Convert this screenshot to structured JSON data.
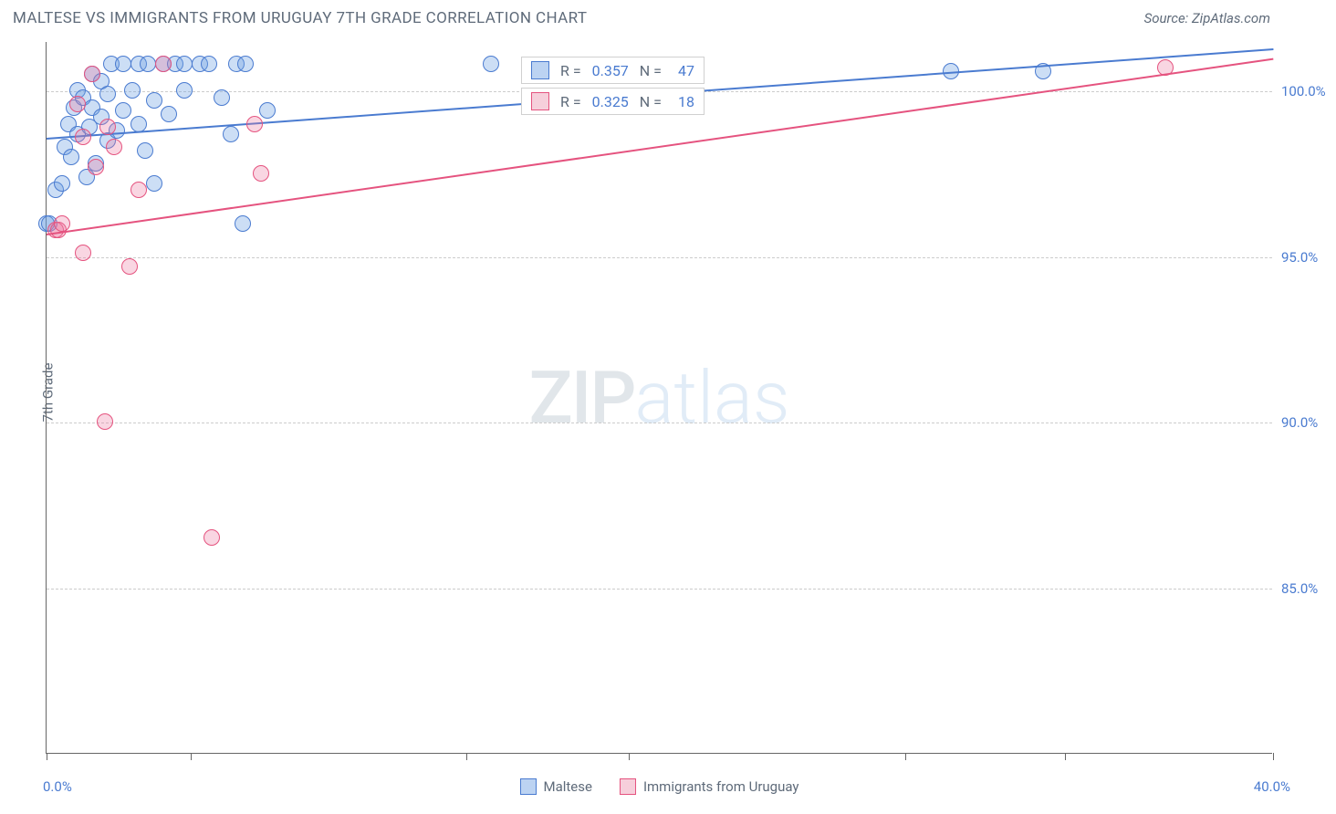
{
  "title": "MALTESE VS IMMIGRANTS FROM URUGUAY 7TH GRADE CORRELATION CHART",
  "source": "Source: ZipAtlas.com",
  "ylabel": "7th Grade",
  "watermark_a": "ZIP",
  "watermark_b": "atlas",
  "chart": {
    "type": "scatter",
    "xlim": [
      0,
      40
    ],
    "ylim": [
      80,
      101.5
    ],
    "xtick_positions": [
      0,
      4.7,
      13.7,
      19.0,
      28.0,
      33.2,
      40.0
    ],
    "x_left_label": "0.0%",
    "x_right_label": "40.0%",
    "yticks": [
      {
        "v": 85.0,
        "label": "85.0%"
      },
      {
        "v": 90.0,
        "label": "90.0%"
      },
      {
        "v": 95.0,
        "label": "95.0%"
      },
      {
        "v": 100.0,
        "label": "100.0%"
      }
    ],
    "background_color": "#ffffff",
    "grid_color": "#cccccc",
    "marker_radius": 9,
    "marker_stroke": 1.5,
    "series": [
      {
        "name": "Maltese",
        "fill": "rgba(110,160,225,0.35)",
        "stroke": "#4a7bd0",
        "swatch_fill": "#bcd3f2",
        "swatch_border": "#4a7bd0",
        "stats": {
          "R_label": "R =",
          "R": "0.357",
          "N_label": "N =",
          "N": "47"
        },
        "regression": {
          "x1": 0,
          "y1": 98.6,
          "x2": 40,
          "y2": 101.3
        },
        "points": [
          [
            0.0,
            96.0
          ],
          [
            0.1,
            96.0
          ],
          [
            0.3,
            97.0
          ],
          [
            0.5,
            97.2
          ],
          [
            0.6,
            98.3
          ],
          [
            0.7,
            99.0
          ],
          [
            0.8,
            98.0
          ],
          [
            0.9,
            99.5
          ],
          [
            1.0,
            98.7
          ],
          [
            1.0,
            100.0
          ],
          [
            1.2,
            99.8
          ],
          [
            1.3,
            97.4
          ],
          [
            1.4,
            98.9
          ],
          [
            1.5,
            99.5
          ],
          [
            1.5,
            100.5
          ],
          [
            1.6,
            97.8
          ],
          [
            1.8,
            99.2
          ],
          [
            1.8,
            100.3
          ],
          [
            2.0,
            98.5
          ],
          [
            2.0,
            99.9
          ],
          [
            2.1,
            100.8
          ],
          [
            2.3,
            98.8
          ],
          [
            2.5,
            99.4
          ],
          [
            2.5,
            100.8
          ],
          [
            2.8,
            100.0
          ],
          [
            3.0,
            99.0
          ],
          [
            3.0,
            100.8
          ],
          [
            3.2,
            98.2
          ],
          [
            3.3,
            100.8
          ],
          [
            3.5,
            97.2
          ],
          [
            3.5,
            99.7
          ],
          [
            3.8,
            100.8
          ],
          [
            4.0,
            99.3
          ],
          [
            4.2,
            100.8
          ],
          [
            4.5,
            100.0
          ],
          [
            4.5,
            100.8
          ],
          [
            5.0,
            100.8
          ],
          [
            5.3,
            100.8
          ],
          [
            5.7,
            99.8
          ],
          [
            6.0,
            98.7
          ],
          [
            6.2,
            100.8
          ],
          [
            6.5,
            100.8
          ],
          [
            6.4,
            96.0
          ],
          [
            7.2,
            99.4
          ],
          [
            14.5,
            100.8
          ],
          [
            29.5,
            100.6
          ],
          [
            32.5,
            100.6
          ]
        ]
      },
      {
        "name": "Immigrants from Uruguay",
        "fill": "rgba(235,120,160,0.30)",
        "stroke": "#e5537f",
        "swatch_fill": "#f6cfdb",
        "swatch_border": "#e5537f",
        "stats": {
          "R_label": "R =",
          "R": "0.325",
          "N_label": "N =",
          "N": "18"
        },
        "regression": {
          "x1": 0,
          "y1": 95.7,
          "x2": 40,
          "y2": 101.0
        },
        "points": [
          [
            0.3,
            95.8
          ],
          [
            0.4,
            95.8
          ],
          [
            0.5,
            96.0
          ],
          [
            1.2,
            95.1
          ],
          [
            1.0,
            99.6
          ],
          [
            1.2,
            98.6
          ],
          [
            1.5,
            100.5
          ],
          [
            1.6,
            97.7
          ],
          [
            2.0,
            98.9
          ],
          [
            2.2,
            98.3
          ],
          [
            1.9,
            90.0
          ],
          [
            2.7,
            94.7
          ],
          [
            3.0,
            97.0
          ],
          [
            3.8,
            100.8
          ],
          [
            5.4,
            86.5
          ],
          [
            7.0,
            97.5
          ],
          [
            6.8,
            99.0
          ],
          [
            36.5,
            100.7
          ]
        ]
      }
    ]
  },
  "legend": {
    "series_a": "Maltese",
    "series_b": "Immigrants from Uruguay"
  }
}
